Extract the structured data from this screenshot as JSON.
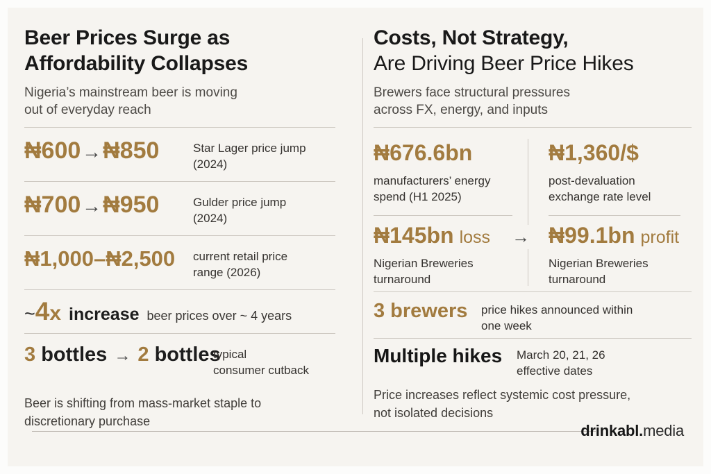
{
  "colors": {
    "background": "#f6f4f0",
    "accent_gold": "#a27b3f",
    "text_dark": "#1a1a1a",
    "text_gray": "#4c4945",
    "divider": "#cdc8c1"
  },
  "left": {
    "title_line1": "Beer Prices Surge as",
    "title_line2": "Affordability Collapses",
    "subtitle_line1": "Nigeria’s mainstream beer is moving",
    "subtitle_line2": "out of everyday reach",
    "rows": [
      {
        "from": "₦600",
        "arrow": "→",
        "to": "₦850",
        "desc_line1": "Star Lager price jump",
        "desc_line2": "(2024)"
      },
      {
        "from": "₦700",
        "arrow": "→",
        "to": "₦950",
        "desc_line1": "Gulder price jump",
        "desc_line2": "(2024)"
      },
      {
        "range": "₦1,000–₦2,500",
        "desc_line1": "current retail price",
        "desc_line2": "range (2026)"
      },
      {
        "prefix": "~",
        "multiplier": "4",
        "multiplier_unit": "x",
        "label": "increase",
        "desc": "beer prices over ~ 4 years"
      },
      {
        "count_before": "3",
        "unit_before": "bottles",
        "arrow": "→",
        "count_after": "2",
        "unit_after": "bottles",
        "desc_line1": "typical",
        "desc_line2": "consumer cutback"
      }
    ],
    "footnote_line1": "Beer is shifting from mass-market staple to",
    "footnote_line2": "discretionary purchase"
  },
  "right": {
    "title_line1": "Costs, Not Strategy,",
    "title_line2": "Are Driving Beer Price Hikes",
    "subtitle_line1": "Brewers face structural pressures",
    "subtitle_line2": "across FX, energy, and inputs",
    "grid": {
      "energy": {
        "value": "₦676.6bn",
        "desc_line1": "manufacturers’ energy",
        "desc_line2": "spend (H1 2025)"
      },
      "fx": {
        "value": "₦1,360/$",
        "desc_line1": "post-devaluation",
        "desc_line2": "exchange rate level"
      },
      "loss": {
        "value": "₦145bn",
        "suffix": "loss",
        "desc_line1": "Nigerian Breweries",
        "desc_line2": "turnaround"
      },
      "arrow": "→",
      "profit": {
        "value": "₦99.1bn",
        "suffix": "profit",
        "desc_line1": "Nigerian Breweries",
        "desc_line2": "turnaround"
      }
    },
    "rows": [
      {
        "value": "3 brewers",
        "desc_line1": "price hikes announced within",
        "desc_line2": "one week"
      },
      {
        "label": "Multiple hikes",
        "desc_line1": "March 20, 21, 26",
        "desc_line2": "effective dates"
      }
    ],
    "footnote_line1": "Price increases reflect systemic cost pressure,",
    "footnote_line2": "not isolated decisions"
  },
  "brand": {
    "bold": "drinkabl.",
    "regular": "media"
  }
}
